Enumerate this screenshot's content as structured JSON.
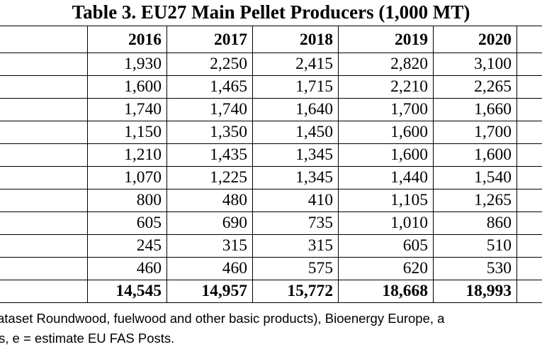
{
  "title": "Table 3. EU27 Main Pellet Producers (1,000 MT)",
  "table": {
    "headers": [
      "",
      "2016",
      "2017",
      "2018",
      "2019",
      "2020",
      ""
    ],
    "rows": [
      [
        "",
        "1,930",
        "2,250",
        "2,415",
        "2,820",
        "3,100",
        ""
      ],
      [
        "",
        "1,600",
        "1,465",
        "1,715",
        "2,210",
        "2,265",
        ""
      ],
      [
        "",
        "1,740",
        "1,740",
        "1,640",
        "1,700",
        "1,660",
        ""
      ],
      [
        "",
        "1,150",
        "1,350",
        "1,450",
        "1,600",
        "1,700",
        ""
      ],
      [
        "",
        "1,210",
        "1,435",
        "1,345",
        "1,600",
        "1,600",
        ""
      ],
      [
        "",
        "1,070",
        "1,225",
        "1,345",
        "1,440",
        "1,540",
        ""
      ],
      [
        "",
        "800",
        "480",
        "410",
        "1,105",
        "1,265",
        ""
      ],
      [
        "",
        "605",
        "690",
        "735",
        "1,010",
        "860",
        ""
      ],
      [
        "",
        "245",
        "315",
        "315",
        "605",
        "510",
        ""
      ],
      [
        "",
        "460",
        "460",
        "575",
        "620",
        "530",
        ""
      ]
    ],
    "total": [
      "",
      "14,545",
      "14,957",
      "15,772",
      "18,668",
      "18,993",
      ""
    ]
  },
  "footnotes": {
    "line1": "ataset Roundwood, fuelwood and other basic products), Bioenergy Europe, a",
    "line2": "s, e = estimate EU FAS Posts."
  }
}
